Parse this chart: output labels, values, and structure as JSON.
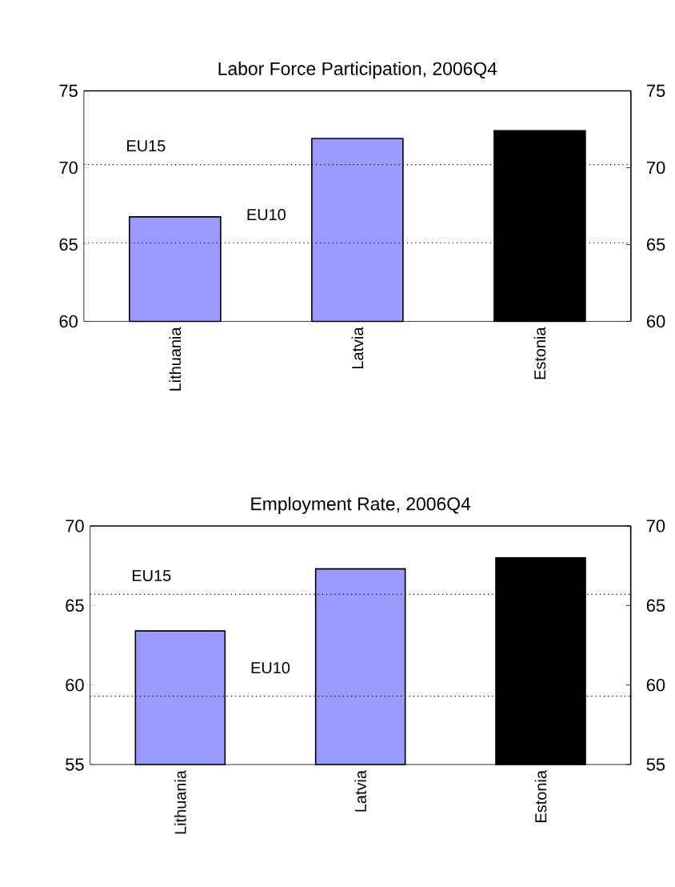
{
  "chart_data": [
    {
      "type": "bar",
      "title": "Labor Force Participation, 2006Q4",
      "categories": [
        "Lithuania",
        "Latvia",
        "Estonia"
      ],
      "values": [
        66.8,
        71.9,
        72.4
      ],
      "colors": [
        "#9999ff",
        "#9999ff",
        "#000000"
      ],
      "ylim": [
        60,
        75
      ],
      "yticks": [
        60,
        65,
        70,
        75
      ],
      "y2lim": [
        60,
        75
      ],
      "y2ticks": [
        60,
        65,
        70,
        75
      ],
      "grid": false,
      "ref_lines": [
        {
          "axis": "y",
          "value": 70.2,
          "label": "EU15",
          "line_style": "dotted",
          "color": "#000000"
        },
        {
          "axis": "y",
          "value": 65.1,
          "label": "EU10",
          "line_style": "dotted",
          "color": "#000000"
        }
      ]
    },
    {
      "type": "bar",
      "title": "Employment Rate, 2006Q4",
      "categories": [
        "Lithuania",
        "Latvia",
        "Estonia"
      ],
      "values": [
        63.4,
        67.3,
        68.0
      ],
      "colors": [
        "#9999ff",
        "#9999ff",
        "#000000"
      ],
      "ylim": [
        55,
        70
      ],
      "yticks": [
        55,
        60,
        65,
        70
      ],
      "y2lim": [
        55,
        70
      ],
      "y2ticks": [
        55,
        60,
        65,
        70
      ],
      "grid": false,
      "ref_lines": [
        {
          "axis": "y",
          "value": 65.7,
          "label": "EU15",
          "line_style": "dotted",
          "color": "#000000"
        },
        {
          "axis": "y",
          "value": 59.3,
          "label": "EU10",
          "line_style": "dotted",
          "color": "#000000"
        }
      ]
    }
  ]
}
